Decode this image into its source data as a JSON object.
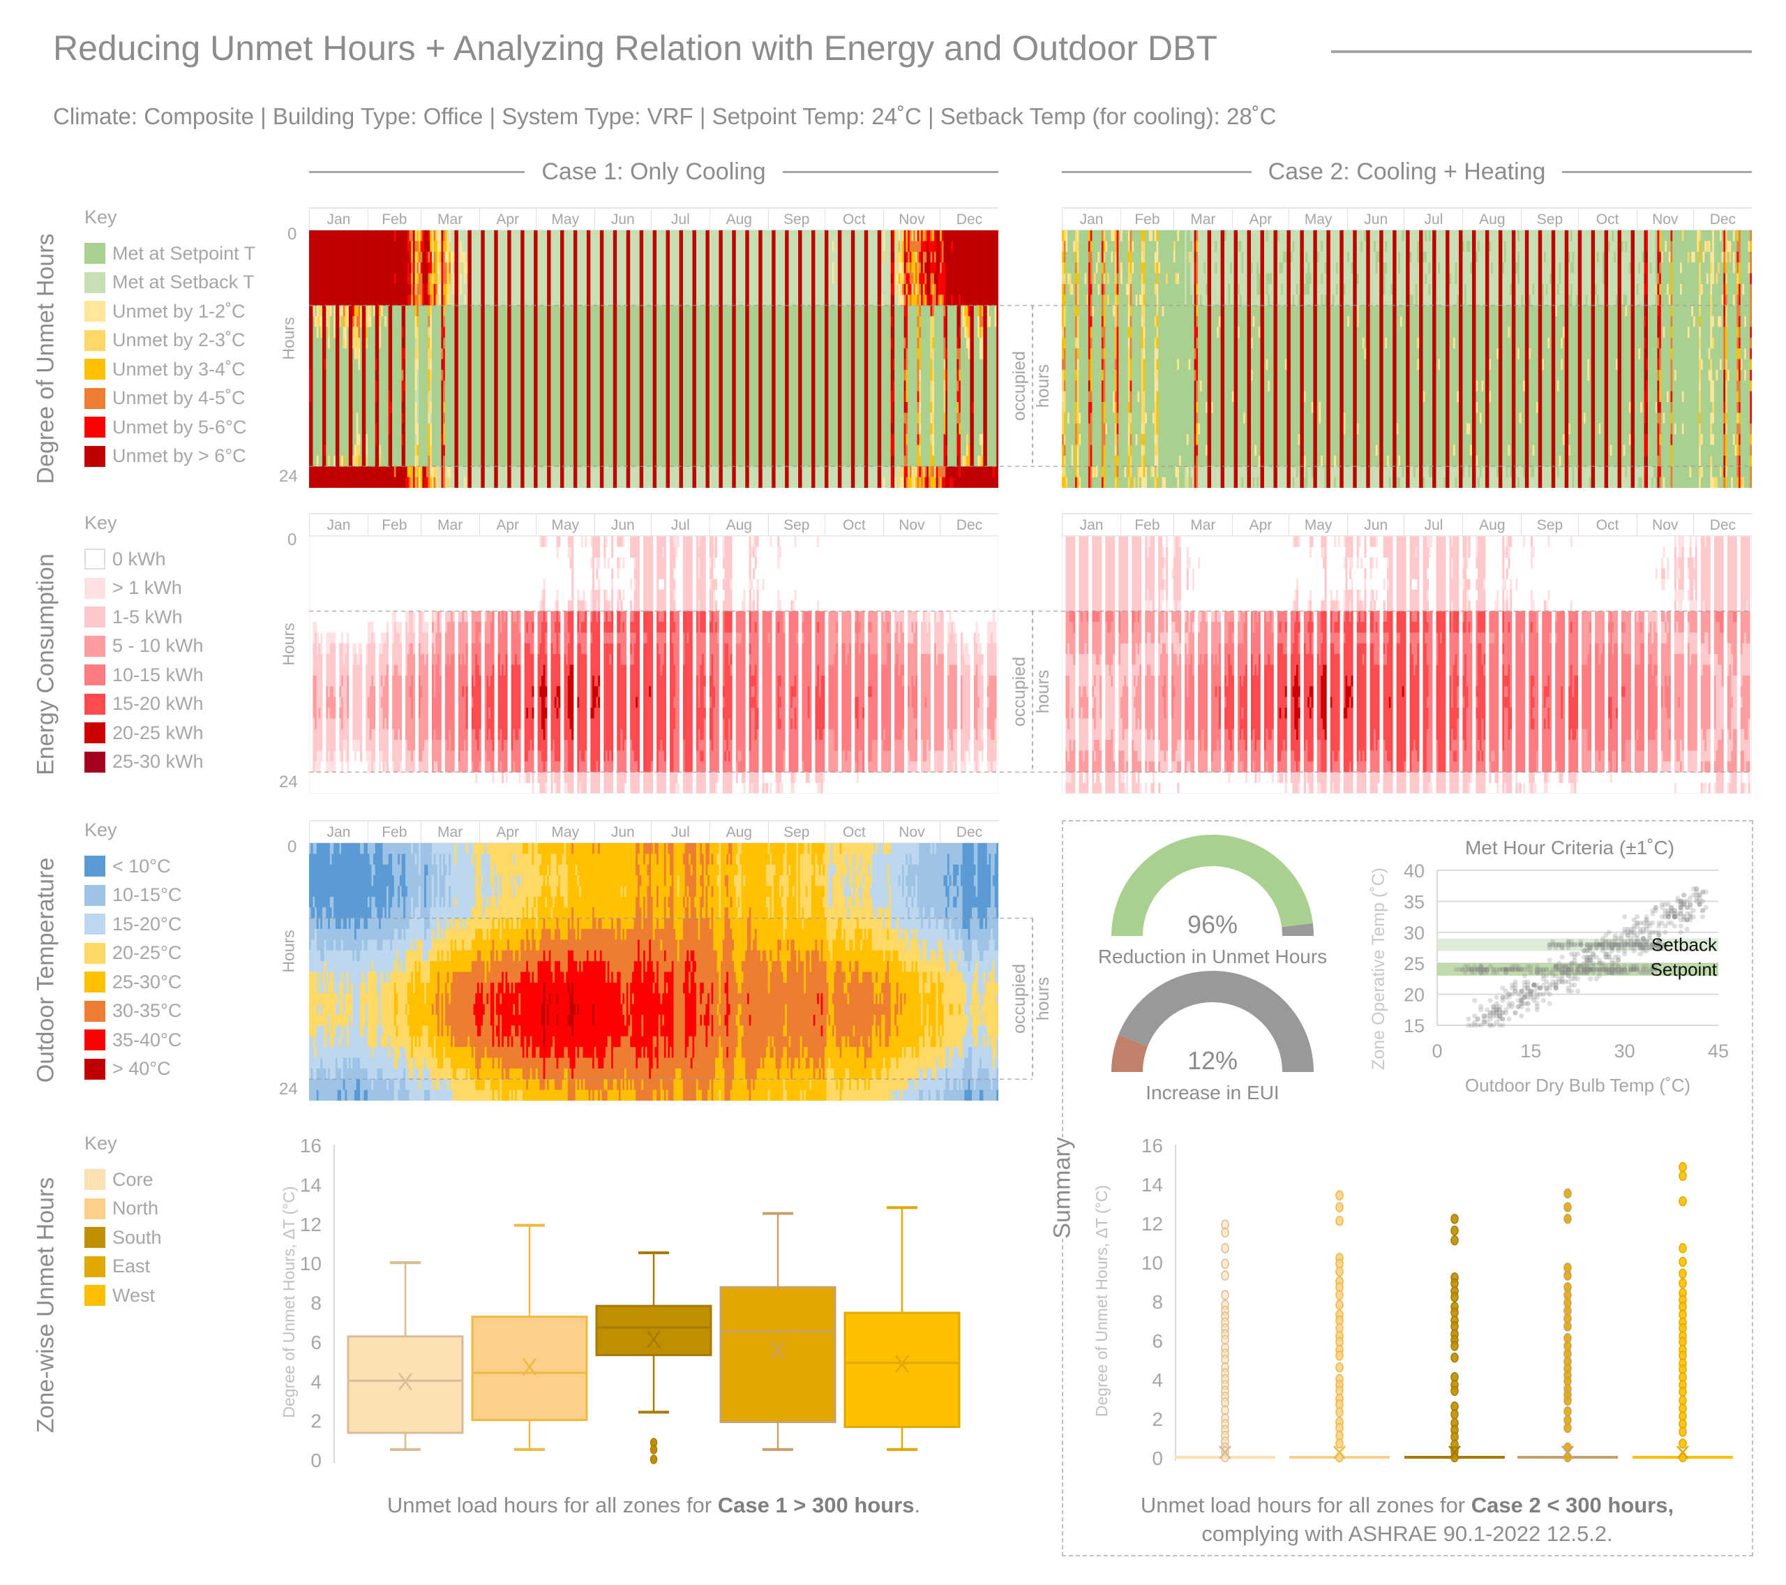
{
  "header": {
    "title": "Reducing Unmet Hours + Analyzing Relation with Energy and Outdoor DBT",
    "subtitle": "Climate: Composite | Building Type: Office | System Type: VRF | Setpoint Temp: 24˚C | Setback Temp (for cooling): 28˚C"
  },
  "cases": [
    "Case 1: Only Cooling",
    "Case 2: Cooling + Heating"
  ],
  "months": [
    "Jan",
    "Feb",
    "Mar",
    "Apr",
    "May",
    "Jun",
    "Jul",
    "Aug",
    "Sep",
    "Oct",
    "Nov",
    "Dec"
  ],
  "hours_axis": {
    "label": "Hours",
    "min": "0",
    "max": "24"
  },
  "occupied_label": {
    "line1": "occupied",
    "line2": "hours"
  },
  "sections": {
    "unmet": {
      "title": "Degree of Unmet Hours",
      "key_label": "Key",
      "legend": [
        {
          "label": "Met at Setpoint T",
          "color": "#a9d08e"
        },
        {
          "label": "Met at Setback T",
          "color": "#c6e0b4"
        },
        {
          "label": "Unmet by 1-2˚C",
          "color": "#ffe699"
        },
        {
          "label": "Unmet by 2-3˚C",
          "color": "#ffd966"
        },
        {
          "label": "Unmet by 3-4˚C",
          "color": "#ffc000"
        },
        {
          "label": "Unmet by 4-5˚C",
          "color": "#ed7d31"
        },
        {
          "label": "Unmet by 5-6°C",
          "color": "#ff0000"
        },
        {
          "label": "Unmet by > 6°C",
          "color": "#c00000"
        }
      ]
    },
    "energy": {
      "title": "Energy Consumption",
      "key_label": "Key",
      "legend": [
        {
          "label": "0 kWh",
          "color": "#ffffff"
        },
        {
          "label": "> 1 kWh",
          "color": "#ffe1e4"
        },
        {
          "label": "1-5 kWh",
          "color": "#ffc9cc"
        },
        {
          "label": "5 - 10 kWh",
          "color": "#ff9c9f"
        },
        {
          "label": "10-15 kWh",
          "color": "#ff7c80"
        },
        {
          "label": "15-20 kWh",
          "color": "#ff4b4f"
        },
        {
          "label": "20-25 kWh",
          "color": "#cc0000"
        },
        {
          "label": "25-30 kWh",
          "color": "#a50021"
        }
      ]
    },
    "outdoor": {
      "title": "Outdoor Temperature",
      "key_label": "Key",
      "legend": [
        {
          "label": "< 10°C",
          "color": "#5b9bd5"
        },
        {
          "label": "10-15°C",
          "color": "#9dc3e6"
        },
        {
          "label": "15-20°C",
          "color": "#bdd7ee"
        },
        {
          "label": "20-25°C",
          "color": "#ffd966"
        },
        {
          "label": "25-30°C",
          "color": "#ffc000"
        },
        {
          "label": "30-35°C",
          "color": "#ed7d31"
        },
        {
          "label": "35-40°C",
          "color": "#ff0000"
        },
        {
          "label": "> 40°C",
          "color": "#c00000"
        }
      ]
    },
    "zones": {
      "title": "Zone-wise Unmet Hours",
      "key_label": "Key",
      "legend": [
        {
          "label": "Core",
          "color": "#fde0b4",
          "stroke": "#d9bc94"
        },
        {
          "label": "North",
          "color": "#fdd08a",
          "stroke": "#f0b840"
        },
        {
          "label": "South",
          "color": "#bf8f00",
          "stroke": "#a77a00"
        },
        {
          "label": "East",
          "color": "#e0a800",
          "stroke": "#c9a06a"
        },
        {
          "label": "West",
          "color": "#fcc000",
          "stroke": "#e0a800"
        }
      ]
    },
    "summary": {
      "title": "Summary"
    }
  },
  "captions": {
    "case1": {
      "pre": "Unmet load hours for all zones for ",
      "bold": "Case 1 > 300 hours",
      "post": "."
    },
    "case2": {
      "pre": "Unmet load hours for all zones for ",
      "bold": "Case 2 < 300 hours,",
      "line2": "complying with ASHRAE 90.1-2022 12.5.2."
    }
  },
  "gauges": [
    {
      "value_label": "96%",
      "label": "Reduction in Unmet Hours",
      "value": 96,
      "color": "#a9d08e",
      "rest_color": "#999999"
    },
    {
      "value_label": "12%",
      "label": "Increase in EUI",
      "value": 12,
      "color": "#c0806a",
      "rest_color": "#999999"
    }
  ],
  "chart_data": [
    {
      "type": "heatmap",
      "id": "unmet-case1",
      "title": "Degree of Unmet Hours",
      "case": "Case 1: Only Cooling",
      "x_ticks": [
        "Jan",
        "Feb",
        "Mar",
        "Apr",
        "May",
        "Jun",
        "Jul",
        "Aug",
        "Sep",
        "Oct",
        "Nov",
        "Dec"
      ],
      "ylabel": "Hours",
      "ylim": [
        0,
        24
      ],
      "occupied_hours": [
        7,
        22
      ]
    },
    {
      "type": "heatmap",
      "id": "unmet-case2",
      "title": "Degree of Unmet Hours",
      "case": "Case 2: Cooling + Heating",
      "x_ticks": [
        "Jan",
        "Feb",
        "Mar",
        "Apr",
        "May",
        "Jun",
        "Jul",
        "Aug",
        "Sep",
        "Oct",
        "Nov",
        "Dec"
      ],
      "ylabel": "Hours",
      "ylim": [
        0,
        24
      ],
      "occupied_hours": [
        7,
        22
      ]
    },
    {
      "type": "heatmap",
      "id": "energy-case1",
      "title": "Energy Consumption",
      "case": "Case 1: Only Cooling",
      "x_ticks": [
        "Jan",
        "Feb",
        "Mar",
        "Apr",
        "May",
        "Jun",
        "Jul",
        "Aug",
        "Sep",
        "Oct",
        "Nov",
        "Dec"
      ],
      "ylabel": "Hours",
      "ylim": [
        0,
        24
      ],
      "occupied_hours": [
        7,
        22
      ]
    },
    {
      "type": "heatmap",
      "id": "energy-case2",
      "title": "Energy Consumption",
      "case": "Case 2: Cooling + Heating",
      "x_ticks": [
        "Jan",
        "Feb",
        "Mar",
        "Apr",
        "May",
        "Jun",
        "Jul",
        "Aug",
        "Sep",
        "Oct",
        "Nov",
        "Dec"
      ],
      "ylabel": "Hours",
      "ylim": [
        0,
        24
      ],
      "occupied_hours": [
        7,
        22
      ]
    },
    {
      "type": "heatmap",
      "id": "outdoor",
      "title": "Outdoor Temperature",
      "x_ticks": [
        "Jan",
        "Feb",
        "Mar",
        "Apr",
        "May",
        "Jun",
        "Jul",
        "Aug",
        "Sep",
        "Oct",
        "Nov",
        "Dec"
      ],
      "ylabel": "Hours",
      "ylim": [
        0,
        24
      ],
      "occupied_hours": [
        7,
        22
      ]
    },
    {
      "type": "pie",
      "id": "gauges",
      "variant": "semicircle-gauge",
      "values": [
        96,
        12
      ],
      "labels": [
        "Reduction in Unmet Hours",
        "Increase in EUI"
      ]
    },
    {
      "type": "scatter",
      "id": "met-hour",
      "title": "Met Hour Criteria (±1˚C)",
      "xlabel": "Outdoor Dry Bulb Temp (˚C)",
      "ylabel": "Zone Operative Temp (˚C)",
      "xlim": [
        0,
        45
      ],
      "ylim": [
        15,
        40
      ],
      "x_ticks": [
        "0",
        "15",
        "30",
        "45"
      ],
      "y_ticks": [
        "15",
        "20",
        "25",
        "30",
        "35",
        "40"
      ],
      "grid": true,
      "bands": [
        {
          "label": "Setback",
          "range": [
            27,
            29
          ],
          "color": "#d9ead3"
        },
        {
          "label": "Setpoint",
          "range": [
            23,
            25
          ],
          "color": "#a9d08e"
        }
      ]
    },
    {
      "type": "bar",
      "variant": "boxplot",
      "id": "zone-boxplot",
      "case": "Case 1",
      "ylabel": "Degree of Unmet Hours, ΔT (°C)",
      "ylim": [
        0,
        16
      ],
      "y_ticks": [
        "0",
        "2",
        "4",
        "6",
        "8",
        "10",
        "12",
        "14",
        "16"
      ],
      "series": [
        {
          "name": "Core",
          "min": 0.5,
          "q1": 1.35,
          "median": 4.0,
          "q3": 6.25,
          "max": 10.0,
          "mean": 3.95,
          "outliers": []
        },
        {
          "name": "North",
          "min": 0.5,
          "q1": 2.0,
          "median": 4.4,
          "q3": 7.25,
          "max": 11.9,
          "mean": 4.7,
          "outliers": []
        },
        {
          "name": "South",
          "min": 2.4,
          "q1": 5.3,
          "median": 6.7,
          "q3": 7.8,
          "max": 10.5,
          "mean": 6.1,
          "outliers": [
            0.85,
            0.5,
            0.0
          ]
        },
        {
          "name": "East",
          "min": 0.5,
          "q1": 1.9,
          "median": 6.5,
          "q3": 8.75,
          "max": 12.5,
          "mean": 5.55,
          "outliers": []
        },
        {
          "name": "West",
          "min": 0.5,
          "q1": 1.65,
          "median": 4.9,
          "q3": 7.45,
          "max": 12.8,
          "mean": 4.85,
          "outliers": []
        }
      ]
    },
    {
      "type": "scatter",
      "variant": "strip",
      "id": "zone-strip",
      "case": "Case 2",
      "ylabel": "Degree of Unmet Hours, ΔT (°C)",
      "ylim": [
        0,
        16
      ],
      "y_ticks": [
        "0",
        "2",
        "4",
        "6",
        "8",
        "10",
        "12",
        "14",
        "16"
      ],
      "series": [
        {
          "name": "Core",
          "median": 0,
          "mean": 0,
          "values": [
            11.9,
            11.5,
            10.7,
            9.9,
            9.3,
            8.3,
            7.8,
            7.5,
            7.2,
            6.9,
            6.6,
            6.3,
            6.0,
            5.6,
            5.3,
            5.0,
            4.6,
            4.3,
            4.0,
            3.7,
            3.4,
            3.1,
            2.8,
            2.4,
            2.0,
            1.7,
            1.4,
            1.1,
            0.8,
            0.5,
            0.3,
            0
          ]
        },
        {
          "name": "North",
          "median": 0,
          "mean": 0,
          "values": [
            13.4,
            12.8,
            12.1,
            10.2,
            9.9,
            9.5,
            9.0,
            8.7,
            8.3,
            7.8,
            7.3,
            7.0,
            6.6,
            6.2,
            5.9,
            5.5,
            5.2,
            4.6,
            4.0,
            3.7,
            3.4,
            3.0,
            2.7,
            2.3,
            1.8,
            1.5,
            1.1,
            0.7,
            0
          ]
        },
        {
          "name": "South",
          "median": 0,
          "mean": 0,
          "values": [
            12.2,
            11.6,
            11.1,
            9.2,
            8.9,
            8.5,
            8.2,
            7.7,
            7.4,
            7.0,
            6.7,
            6.3,
            6.0,
            5.7,
            5.1,
            4.1,
            3.7,
            3.4,
            2.6,
            2.2,
            1.75,
            1.4,
            1.05,
            0.65,
            0.3,
            0
          ]
        },
        {
          "name": "East",
          "median": 0,
          "mean": 0,
          "values": [
            13.5,
            12.8,
            12.2,
            9.7,
            9.3,
            8.7,
            8.3,
            7.9,
            7.5,
            7.1,
            6.7,
            6.1,
            5.7,
            5.3,
            4.9,
            4.55,
            4.2,
            3.9,
            3.5,
            3.2,
            2.9,
            2.35,
            1.9,
            1.5,
            0.5,
            0
          ]
        },
        {
          "name": "West",
          "median": 0,
          "mean": 0,
          "values": [
            14.85,
            14.4,
            13.1,
            10.7,
            10.0,
            9.4,
            8.9,
            8.4,
            8.05,
            7.7,
            7.3,
            6.9,
            6.6,
            6.2,
            5.9,
            5.5,
            5.2,
            4.8,
            4.5,
            4.1,
            3.7,
            3.35,
            2.9,
            2.5,
            2.1,
            1.7,
            1.3,
            0.7,
            0
          ]
        }
      ]
    }
  ]
}
